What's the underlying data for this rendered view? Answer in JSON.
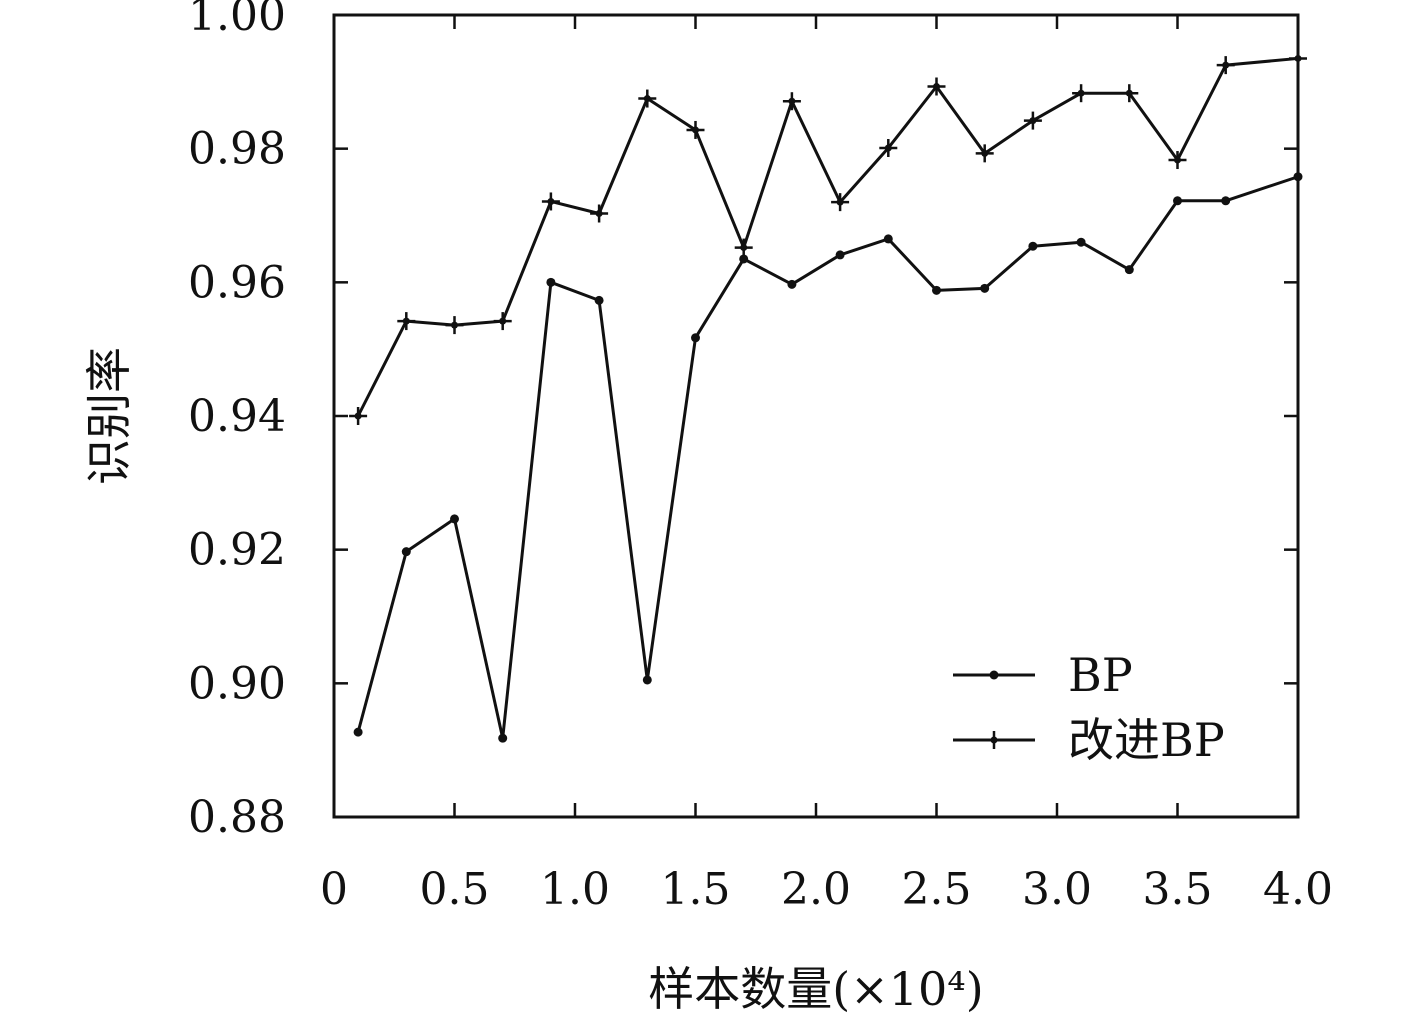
{
  "chart_data": {
    "type": "line",
    "xlabel": "样本数量(×10⁴)",
    "ylabel": "识别率",
    "xlim": [
      0,
      4.0
    ],
    "ylim": [
      0.88,
      1.0
    ],
    "x_ticks": [
      "0",
      "0.5",
      "1.0",
      "1.5",
      "2.0",
      "2.5",
      "3.0",
      "3.5",
      "4.0"
    ],
    "y_ticks": [
      "0.88",
      "0.90",
      "0.92",
      "0.94",
      "0.96",
      "0.98",
      "1.00"
    ],
    "grid": false,
    "legend_position": "bottom-right",
    "x": [
      0.1,
      0.3,
      0.5,
      0.7,
      0.9,
      1.1,
      1.3,
      1.5,
      1.7,
      1.9,
      2.1,
      2.3,
      2.5,
      2.7,
      2.9,
      3.1,
      3.3,
      3.5,
      3.7,
      4.0
    ],
    "series": [
      {
        "name": "BP",
        "marker": "dot",
        "values": [
          0.8927,
          0.9197,
          0.9246,
          0.8918,
          0.96,
          0.9573,
          0.9005,
          0.9517,
          0.9635,
          0.9597,
          0.9641,
          0.9665,
          0.9588,
          0.9591,
          0.9654,
          0.966,
          0.9619,
          0.9722,
          0.9722,
          0.9758
        ]
      },
      {
        "name": "改进BP",
        "marker": "plus",
        "values": [
          0.94,
          0.9542,
          0.9536,
          0.9542,
          0.9721,
          0.9703,
          0.9875,
          0.9828,
          0.9652,
          0.9871,
          0.972,
          0.9801,
          0.9893,
          0.9793,
          0.9842,
          0.9883,
          0.9883,
          0.9783,
          0.9925,
          0.9935
        ]
      }
    ]
  }
}
